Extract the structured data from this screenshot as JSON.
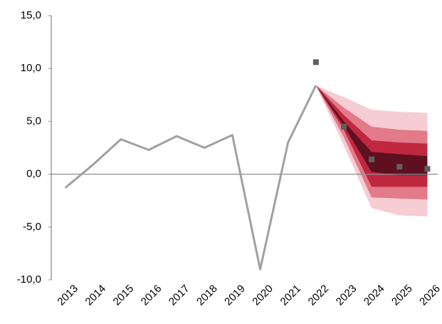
{
  "chart_data": {
    "type": "fan",
    "categories": [
      "2013",
      "2014",
      "2015",
      "2016",
      "2017",
      "2018",
      "2019",
      "2020",
      "2021",
      "2022",
      "2023",
      "2024",
      "2025",
      "2026"
    ],
    "ylim": [
      -10,
      15
    ],
    "yticks": [
      {
        "value": -10,
        "label": "-10,0"
      },
      {
        "value": -5,
        "label": "-5,0"
      },
      {
        "value": 0,
        "label": "0,0"
      },
      {
        "value": 5,
        "label": "5,0"
      },
      {
        "value": 10,
        "label": "10,0"
      },
      {
        "value": 15,
        "label": "15,0"
      }
    ],
    "line": {
      "color": "#a0a0a0",
      "values": [
        -1.3,
        0.9,
        3.3,
        2.3,
        3.6,
        2.5,
        3.7,
        -9.0,
        3.0,
        8.4,
        null,
        null,
        null,
        null
      ]
    },
    "markers": {
      "color": "#5f5f5f",
      "values": [
        null,
        null,
        null,
        null,
        null,
        null,
        null,
        null,
        null,
        10.6,
        4.5,
        1.4,
        0.7,
        0.5
      ]
    },
    "bands": [
      {
        "color": "#f5cdd3",
        "upper": [
          null,
          null,
          null,
          null,
          null,
          null,
          null,
          null,
          null,
          8.4,
          7.3,
          6.1,
          5.9,
          5.8
        ],
        "lower": [
          null,
          null,
          null,
          null,
          null,
          null,
          null,
          null,
          null,
          8.4,
          2.7,
          -3.2,
          -3.9,
          -4.0
        ]
      },
      {
        "color": "#e27a89",
        "upper": [
          null,
          null,
          null,
          null,
          null,
          null,
          null,
          null,
          null,
          8.4,
          6.3,
          4.5,
          4.2,
          4.1
        ],
        "lower": [
          null,
          null,
          null,
          null,
          null,
          null,
          null,
          null,
          null,
          8.4,
          3.5,
          -2.2,
          -2.3,
          -2.4
        ]
      },
      {
        "color": "#c0283f",
        "upper": [
          null,
          null,
          null,
          null,
          null,
          null,
          null,
          null,
          null,
          8.4,
          5.6,
          3.2,
          3.0,
          2.9
        ],
        "lower": [
          null,
          null,
          null,
          null,
          null,
          null,
          null,
          null,
          null,
          8.4,
          4.2,
          -1.2,
          -1.2,
          -1.2
        ]
      },
      {
        "color": "#5e1020",
        "upper": [
          null,
          null,
          null,
          null,
          null,
          null,
          null,
          null,
          null,
          8.4,
          5.0,
          2.1,
          1.9,
          1.7
        ],
        "lower": [
          null,
          null,
          null,
          null,
          null,
          null,
          null,
          null,
          null,
          8.4,
          4.6,
          0.2,
          -0.1,
          -0.1
        ]
      }
    ]
  }
}
